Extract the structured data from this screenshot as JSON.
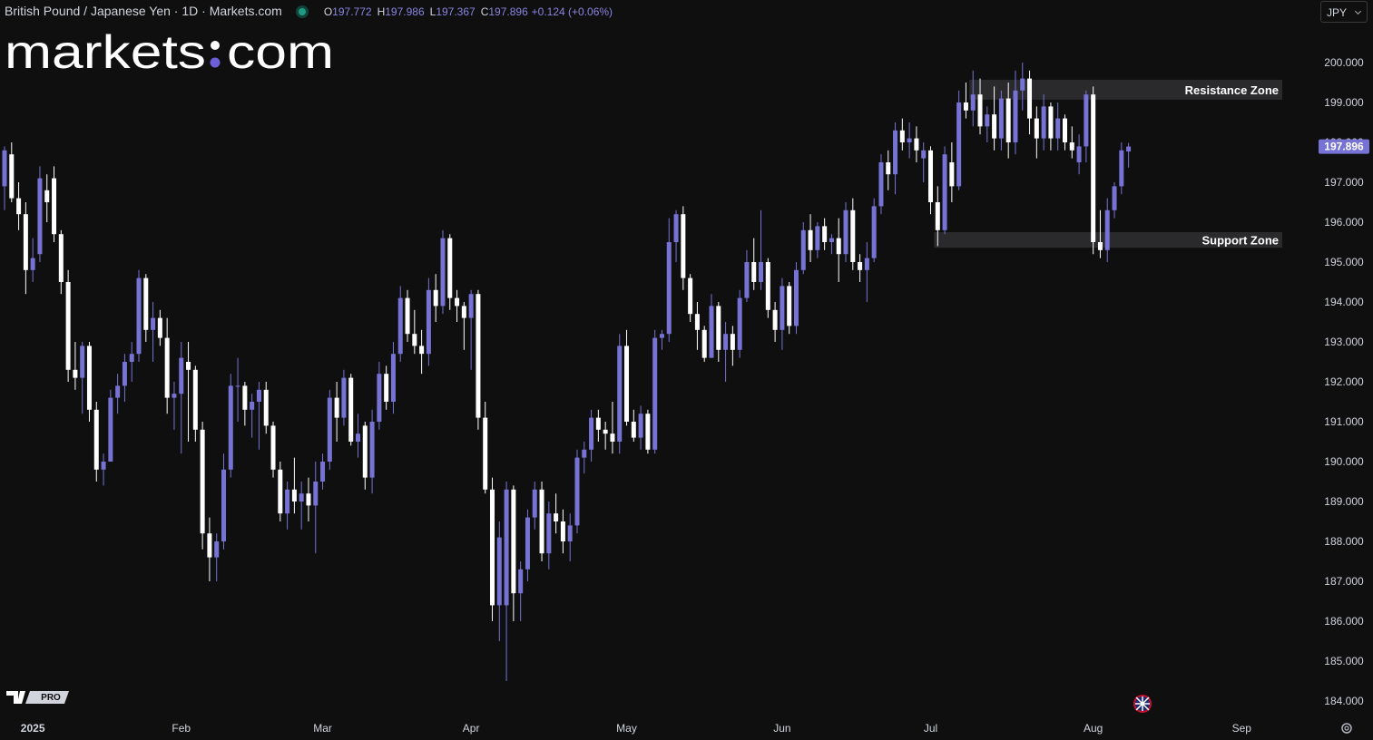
{
  "header": {
    "symbol": "British Pound / Japanese Yen · 1D · Markets.com",
    "ohlc": [
      {
        "key": "O",
        "value": "197.772"
      },
      {
        "key": "H",
        "value": "197.986"
      },
      {
        "key": "L",
        "value": "197.367"
      },
      {
        "key": "C",
        "value": "197.896"
      }
    ],
    "change": "+0.124 (+0.06%)",
    "currency": "JPY"
  },
  "logo": {
    "left": "markets",
    "right": "com"
  },
  "badge": "PRO",
  "chart_data": {
    "type": "candlestick",
    "up_color": "#7673d4",
    "down_color": "#ffffff",
    "ylim": [
      183.614,
      201.568
    ],
    "yticks": [
      {
        "value": 184,
        "label": "184.000"
      },
      {
        "value": 185,
        "label": "185.000"
      },
      {
        "value": 186,
        "label": "186.000"
      },
      {
        "value": 187,
        "label": "187.000"
      },
      {
        "value": 188,
        "label": "188.000"
      },
      {
        "value": 189,
        "label": "189.000"
      },
      {
        "value": 190,
        "label": "190.000"
      },
      {
        "value": 191,
        "label": "191.000"
      },
      {
        "value": 192,
        "label": "192.000"
      },
      {
        "value": 193,
        "label": "193.000"
      },
      {
        "value": 194,
        "label": "194.000"
      },
      {
        "value": 195,
        "label": "195.000"
      },
      {
        "value": 196,
        "label": "196.000"
      },
      {
        "value": 197,
        "label": "197.000"
      },
      {
        "value": 198,
        "label": "198.000"
      },
      {
        "value": 199,
        "label": "199.000"
      },
      {
        "value": 200,
        "label": "200.000"
      }
    ],
    "last_price": {
      "value": 197.896,
      "label": "197.896"
    },
    "zones": [
      {
        "label": "Resistance Zone",
        "from": 137,
        "top": 199.57,
        "bottom": 199.07
      },
      {
        "label": "Support Zone",
        "from": 132,
        "top": 195.75,
        "bottom": 195.36
      }
    ],
    "categories": [
      null,
      null,
      null,
      null,
      "2025",
      null,
      null,
      null,
      null,
      null,
      null,
      null,
      null,
      null,
      null,
      null,
      null,
      null,
      null,
      null,
      null,
      null,
      null,
      null,
      null,
      "Feb",
      null,
      null,
      null,
      null,
      null,
      null,
      null,
      null,
      null,
      null,
      null,
      null,
      null,
      null,
      null,
      null,
      null,
      null,
      null,
      "Mar",
      null,
      null,
      null,
      null,
      null,
      null,
      null,
      null,
      null,
      null,
      null,
      null,
      null,
      null,
      null,
      null,
      null,
      null,
      null,
      null,
      "Apr",
      null,
      null,
      null,
      null,
      null,
      null,
      null,
      null,
      null,
      null,
      null,
      null,
      null,
      null,
      null,
      null,
      null,
      null,
      null,
      null,
      null,
      "May",
      null,
      null,
      null,
      null,
      null,
      null,
      null,
      null,
      null,
      null,
      null,
      null,
      null,
      null,
      null,
      null,
      null,
      null,
      null,
      null,
      null,
      "Jun",
      null,
      null,
      null,
      null,
      null,
      null,
      null,
      null,
      null,
      null,
      null,
      null,
      null,
      null,
      null,
      null,
      null,
      null,
      null,
      null,
      "Jul",
      null,
      null,
      null,
      null,
      null,
      null,
      null,
      null,
      null,
      null,
      null,
      null,
      null,
      null,
      null,
      null,
      null,
      null,
      null,
      null,
      null,
      null,
      "Aug",
      null,
      null,
      null,
      null,
      null,
      null,
      null,
      null,
      null,
      null,
      null,
      null,
      null,
      null,
      null,
      null,
      null,
      null,
      null,
      null,
      "Sep",
      null,
      null,
      null,
      null
    ],
    "open": [
      196.9,
      197.7,
      196.6,
      196.2,
      194.8,
      195.2,
      196.8,
      197.1,
      195.7,
      194.5,
      192.3,
      192.1,
      192.9,
      191.3,
      189.8,
      190.0,
      191.6,
      191.9,
      192.5,
      192.7,
      194.6,
      193.3,
      193.6,
      193.1,
      191.6,
      191.7,
      192.5,
      192.3,
      190.8,
      188.2,
      187.6,
      188.0,
      189.8,
      191.9,
      191.9,
      191.3,
      191.5,
      191.8,
      190.9,
      189.8,
      188.7,
      189.3,
      189.0,
      189.2,
      188.9,
      189.5,
      190.0,
      191.6,
      191.1,
      192.1,
      190.5,
      190.9,
      189.6,
      191.0,
      192.2,
      191.5,
      192.7,
      194.1,
      193.2,
      192.9,
      192.7,
      194.3,
      193.9,
      195.6,
      194.1,
      193.9,
      193.6,
      194.2,
      191.1,
      189.3,
      186.4,
      186.4,
      189.3,
      186.7,
      187.3,
      188.6,
      189.3,
      187.7,
      188.7,
      188.5,
      188.0,
      188.4,
      190.1,
      190.3,
      191.1,
      190.8,
      190.7,
      190.5,
      192.9,
      191.0,
      190.6,
      191.2,
      190.3,
      193.1,
      193.2,
      195.5,
      196.2,
      194.6,
      193.7,
      193.3,
      192.6,
      193.9,
      192.8,
      193.2,
      192.8,
      194.1,
      195.0,
      194.5,
      195.0,
      193.8,
      193.3,
      194.4,
      193.4,
      194.8,
      195.8,
      195.3,
      195.9,
      195.5,
      195.6,
      195.2,
      196.3,
      195.0,
      194.8,
      195.1,
      196.4,
      197.5,
      197.2,
      198.3,
      198.0,
      198.1,
      197.6,
      197.8,
      196.5,
      195.8,
      197.5,
      196.9,
      199.0,
      198.8,
      199.2,
      198.4,
      198.7,
      198.1,
      199.1,
      198.0,
      199.3,
      199.6,
      198.6,
      198.1,
      198.9,
      198.1,
      198.6,
      198.0,
      197.5,
      197.9,
      199.2,
      195.5,
      195.3,
      196.3,
      196.9,
      197.772,
      null,
      null,
      null,
      null,
      null,
      null,
      null,
      null,
      null,
      null,
      null,
      null,
      null,
      null,
      null,
      null,
      null,
      null,
      null,
      null
    ],
    "high": [
      197.9,
      198.0,
      197.0,
      196.5,
      195.6,
      197.4,
      197.2,
      197.4,
      195.8,
      194.8,
      193.0,
      193.0,
      193.0,
      191.5,
      190.2,
      191.8,
      192.2,
      192.7,
      193.0,
      194.8,
      194.7,
      194.0,
      193.8,
      193.6,
      192.0,
      193.0,
      193.0,
      192.4,
      191.0,
      188.6,
      188.2,
      190.2,
      192.2,
      192.6,
      192.0,
      191.7,
      192.0,
      192.0,
      191.0,
      190.0,
      189.5,
      190.1,
      189.5,
      189.6,
      190.0,
      190.2,
      191.8,
      192.0,
      192.3,
      192.2,
      191.2,
      191.0,
      191.3,
      192.5,
      192.4,
      193.0,
      194.4,
      194.3,
      193.8,
      193.3,
      194.6,
      194.7,
      195.8,
      195.7,
      194.3,
      194.0,
      194.3,
      194.3,
      191.5,
      189.6,
      188.5,
      189.5,
      189.4,
      187.5,
      188.8,
      189.5,
      189.5,
      189.0,
      189.2,
      188.8,
      188.7,
      190.3,
      190.5,
      191.3,
      191.3,
      191.0,
      191.5,
      193.2,
      193.3,
      191.3,
      191.4,
      191.3,
      193.3,
      193.3,
      196.1,
      196.3,
      196.4,
      194.7,
      194.0,
      193.4,
      194.2,
      194.0,
      193.5,
      193.4,
      194.3,
      195.3,
      195.6,
      196.3,
      195.1,
      194.0,
      194.6,
      194.5,
      195.0,
      196.0,
      196.2,
      196.0,
      196.1,
      195.7,
      196.1,
      196.5,
      196.6,
      195.2,
      195.5,
      196.6,
      197.7,
      197.8,
      198.5,
      198.6,
      198.5,
      198.4,
      198.0,
      197.9,
      196.9,
      197.9,
      198.0,
      199.3,
      199.5,
      199.8,
      199.6,
      198.9,
      199.4,
      199.3,
      199.5,
      199.8,
      200.0,
      199.8,
      198.9,
      199.2,
      199.0,
      199.0,
      198.7,
      198.4,
      198.2,
      199.3,
      199.4,
      196.3,
      196.6,
      197.0,
      198.0,
      197.986,
      null,
      null,
      null,
      null,
      null,
      null,
      null,
      null,
      null,
      null,
      null,
      null,
      null,
      null,
      null,
      null,
      null,
      null,
      null,
      null
    ],
    "low": [
      196.3,
      196.5,
      195.8,
      194.2,
      194.5,
      195.0,
      196.0,
      195.5,
      194.2,
      192.0,
      191.8,
      191.2,
      191.0,
      189.5,
      189.4,
      190.0,
      191.2,
      191.5,
      192.0,
      192.5,
      193.0,
      192.5,
      192.9,
      191.2,
      190.8,
      190.2,
      190.5,
      190.5,
      187.8,
      187.0,
      187.0,
      187.8,
      189.6,
      191.0,
      190.9,
      190.6,
      190.3,
      190.7,
      189.6,
      188.5,
      188.3,
      188.7,
      188.3,
      188.5,
      187.7,
      189.3,
      189.8,
      190.5,
      190.9,
      190.4,
      190.1,
      189.3,
      189.2,
      190.8,
      191.3,
      191.2,
      192.5,
      193.0,
      192.7,
      192.2,
      192.4,
      193.5,
      193.7,
      193.8,
      193.5,
      192.8,
      192.3,
      190.8,
      189.2,
      186.0,
      185.5,
      184.5,
      186.0,
      186.0,
      187.0,
      188.3,
      187.5,
      187.3,
      188.2,
      187.7,
      187.5,
      188.2,
      189.7,
      190.0,
      190.5,
      190.3,
      190.2,
      190.2,
      190.9,
      190.5,
      190.3,
      190.2,
      190.2,
      192.8,
      193.0,
      195.0,
      194.3,
      193.5,
      192.8,
      192.5,
      192.6,
      192.5,
      192.0,
      192.4,
      192.6,
      194.0,
      194.3,
      194.3,
      193.6,
      193.0,
      192.8,
      193.2,
      193.2,
      194.7,
      195.0,
      195.1,
      195.3,
      195.2,
      194.5,
      195.0,
      194.8,
      194.5,
      194.0,
      195.0,
      196.2,
      196.8,
      196.7,
      197.8,
      197.6,
      197.5,
      197.0,
      196.2,
      195.4,
      195.7,
      196.5,
      196.8,
      198.6,
      198.4,
      198.2,
      198.0,
      197.8,
      197.8,
      197.6,
      197.7,
      198.8,
      198.2,
      197.6,
      197.8,
      197.8,
      197.8,
      197.8,
      197.6,
      197.2,
      197.5,
      195.2,
      195.1,
      195.0,
      196.1,
      196.7,
      197.367,
      null,
      null,
      null,
      null,
      null,
      null,
      null,
      null,
      null,
      null,
      null,
      null,
      null,
      null,
      null,
      null,
      null,
      null,
      null,
      null
    ],
    "close": [
      197.8,
      196.6,
      196.2,
      194.8,
      195.1,
      197.1,
      196.5,
      195.7,
      194.5,
      192.3,
      192.1,
      192.9,
      191.3,
      189.8,
      190.0,
      191.6,
      191.9,
      192.5,
      192.7,
      194.6,
      193.3,
      193.6,
      193.1,
      191.6,
      191.7,
      192.6,
      192.3,
      190.8,
      188.2,
      187.6,
      188.0,
      189.8,
      191.9,
      191.9,
      191.3,
      191.5,
      191.8,
      190.9,
      189.8,
      188.7,
      189.3,
      189.0,
      189.2,
      188.9,
      189.5,
      190.0,
      191.6,
      191.1,
      192.1,
      190.5,
      190.7,
      189.6,
      191.0,
      192.2,
      191.5,
      192.7,
      194.1,
      193.2,
      192.9,
      192.7,
      194.3,
      193.9,
      195.6,
      194.1,
      193.9,
      193.6,
      194.2,
      191.1,
      189.3,
      186.4,
      188.1,
      189.3,
      186.7,
      187.3,
      188.6,
      189.3,
      187.7,
      188.7,
      188.5,
      188.0,
      188.4,
      190.1,
      190.3,
      191.1,
      190.8,
      190.7,
      190.5,
      192.9,
      191.0,
      190.6,
      191.2,
      190.3,
      193.1,
      193.2,
      195.5,
      196.2,
      194.6,
      193.7,
      193.3,
      192.6,
      193.9,
      192.8,
      193.2,
      192.8,
      194.1,
      195.0,
      194.5,
      195.0,
      193.8,
      193.3,
      194.4,
      193.4,
      194.8,
      195.8,
      195.3,
      195.9,
      195.5,
      195.6,
      195.2,
      196.3,
      195.0,
      194.8,
      195.1,
      196.4,
      197.5,
      197.2,
      198.3,
      198.0,
      198.1,
      197.8,
      197.8,
      196.5,
      195.8,
      197.7,
      196.9,
      199.0,
      198.8,
      199.2,
      198.4,
      198.7,
      198.1,
      199.1,
      198.0,
      199.3,
      199.6,
      198.6,
      198.1,
      198.9,
      198.1,
      198.6,
      198.0,
      197.8,
      197.9,
      199.2,
      195.5,
      195.3,
      196.3,
      196.9,
      197.8,
      197.896,
      null,
      null,
      null,
      null,
      null,
      null,
      null,
      null,
      null,
      null,
      null,
      null,
      null,
      null,
      null,
      null,
      null,
      null,
      null,
      null
    ]
  }
}
